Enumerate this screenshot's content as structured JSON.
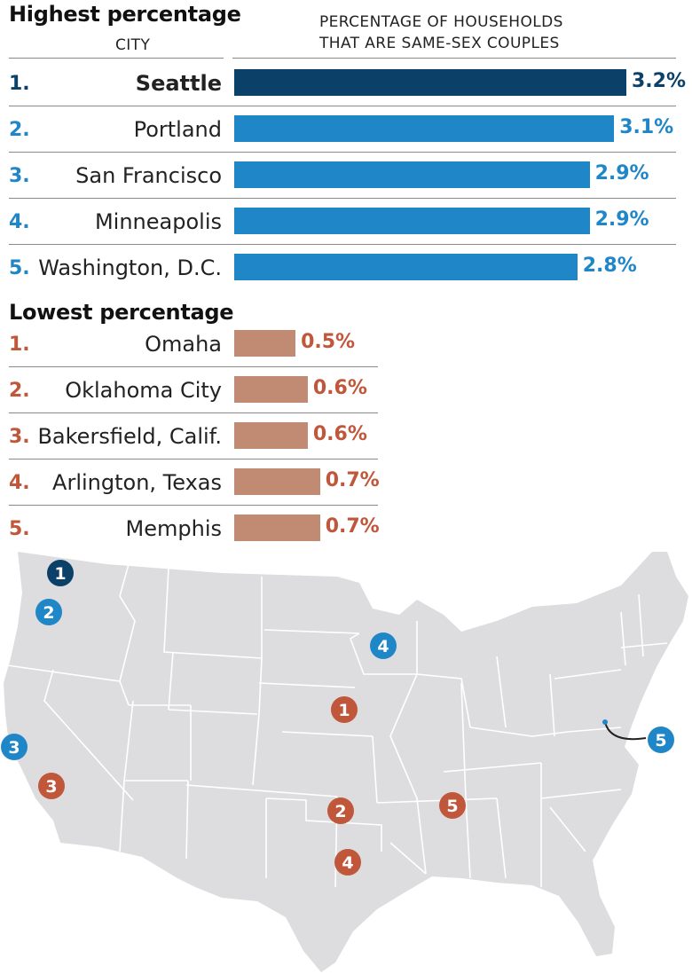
{
  "colors": {
    "top_first": "#0b4168",
    "top": "#1f86c8",
    "low": "#c08a73",
    "low_text": "#c0573a",
    "map_land": "#dddde0",
    "map_border": "#ffffff"
  },
  "headers": {
    "highest": "Highest percentage",
    "city": "CITY",
    "measure_line1": "PERCENTAGE OF HOUSEHOLDS",
    "measure_line2": "THAT ARE SAME-SEX COUPLES",
    "lowest": "Lowest percentage"
  },
  "chart_data": [
    {
      "type": "bar",
      "title": "Highest percentage",
      "categories": [
        "Seattle",
        "Portland",
        "San Francisco",
        "Minneapolis",
        "Washington, D.C."
      ],
      "ranks": [
        "1.",
        "2.",
        "3.",
        "4.",
        "5."
      ],
      "values": [
        3.2,
        3.1,
        2.9,
        2.9,
        2.8
      ],
      "labels": [
        "3.2%",
        "3.1%",
        "2.9%",
        "2.9%",
        "2.8%"
      ],
      "xlim": [
        0,
        3.2
      ]
    },
    {
      "type": "bar",
      "title": "Lowest percentage",
      "categories": [
        "Omaha",
        "Oklahoma City",
        "Bakersfield, Calif.",
        "Arlington, Texas",
        "Memphis"
      ],
      "ranks": [
        "1.",
        "2.",
        "3.",
        "4.",
        "5."
      ],
      "values": [
        0.5,
        0.6,
        0.6,
        0.7,
        0.7
      ],
      "labels": [
        "0.5%",
        "0.6%",
        "0.6%",
        "0.7%",
        "0.7%"
      ],
      "xlim": [
        0,
        3.2
      ]
    }
  ],
  "map": {
    "markers_high": [
      "1",
      "2",
      "3",
      "4",
      "5"
    ],
    "markers_low": [
      "1",
      "2",
      "3",
      "4",
      "5"
    ]
  }
}
